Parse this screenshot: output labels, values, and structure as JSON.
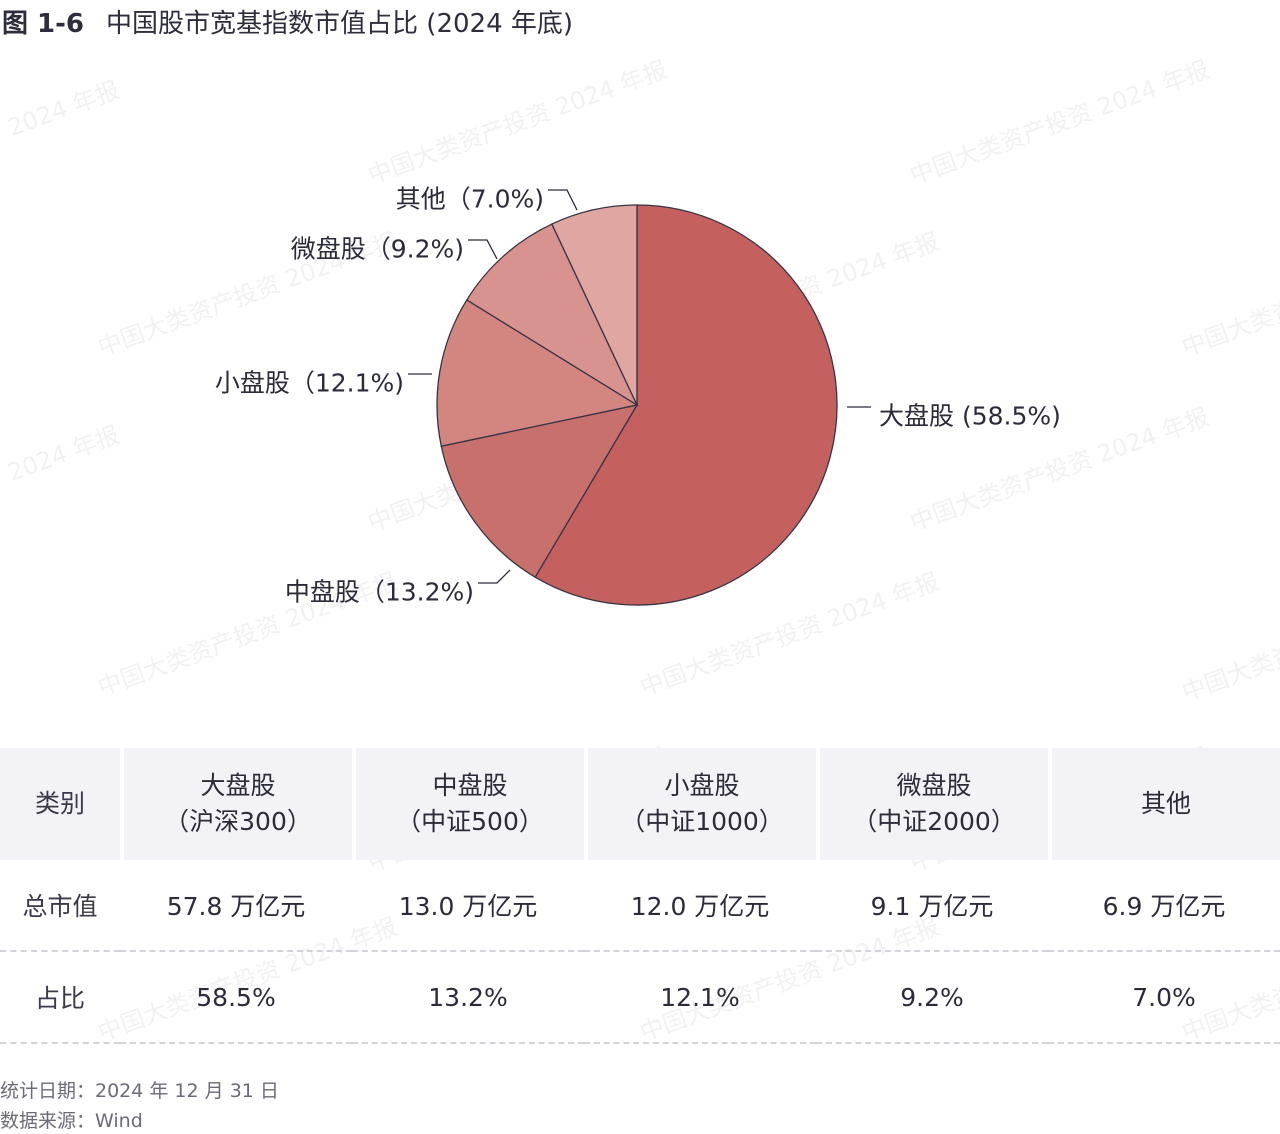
{
  "title": {
    "figure_no": "图 1-6",
    "text": "中国股市宽基指数市值占比 (2024 年底)"
  },
  "watermark": {
    "text_long": "中国大类资产投资 2024 年报",
    "text_short": "2024 年报",
    "text_edge": "中国大类资"
  },
  "colors": {
    "large": "#c4615e",
    "mid": "#c8706c",
    "small": "#d38680",
    "micro": "#d9938f",
    "other": "#e0a6a1",
    "stroke": "#3a3346"
  },
  "chart_data": {
    "type": "pie",
    "title": "中国股市宽基指数市值占比 (2024 年底)",
    "categories": [
      "大盘股",
      "中盘股",
      "小盘股",
      "微盘股",
      "其他"
    ],
    "values": [
      58.5,
      13.2,
      12.1,
      9.2,
      7.0
    ],
    "unit": "%",
    "labels": [
      "大盘股 (58.5%)",
      "中盘股（13.2%)",
      "小盘股（12.1%)",
      "微盘股（9.2%)",
      "其他（7.0%)"
    ],
    "start_angle": "12 o'clock",
    "direction": "clockwise"
  },
  "table": {
    "header": [
      {
        "line1": "类别",
        "line2": ""
      },
      {
        "line1": "大盘股",
        "line2": "（沪深300）"
      },
      {
        "line1": "中盘股",
        "line2": "（中证500）"
      },
      {
        "line1": "小盘股",
        "line2": "（中证1000）"
      },
      {
        "line1": "微盘股",
        "line2": "（中证2000）"
      },
      {
        "line1": "其他",
        "line2": ""
      }
    ],
    "rows": [
      {
        "label": "总市值",
        "values": [
          "57.8 万亿元",
          "13.0 万亿元",
          "12.0 万亿元",
          "9.1 万亿元",
          "6.9 万亿元"
        ]
      },
      {
        "label": "占比",
        "values": [
          "58.5%",
          "13.2%",
          "12.1%",
          "9.2%",
          "7.0%"
        ]
      }
    ]
  },
  "footer": {
    "date": "统计日期：2024 年 12 月 31 日",
    "source": "数据来源：Wind"
  }
}
